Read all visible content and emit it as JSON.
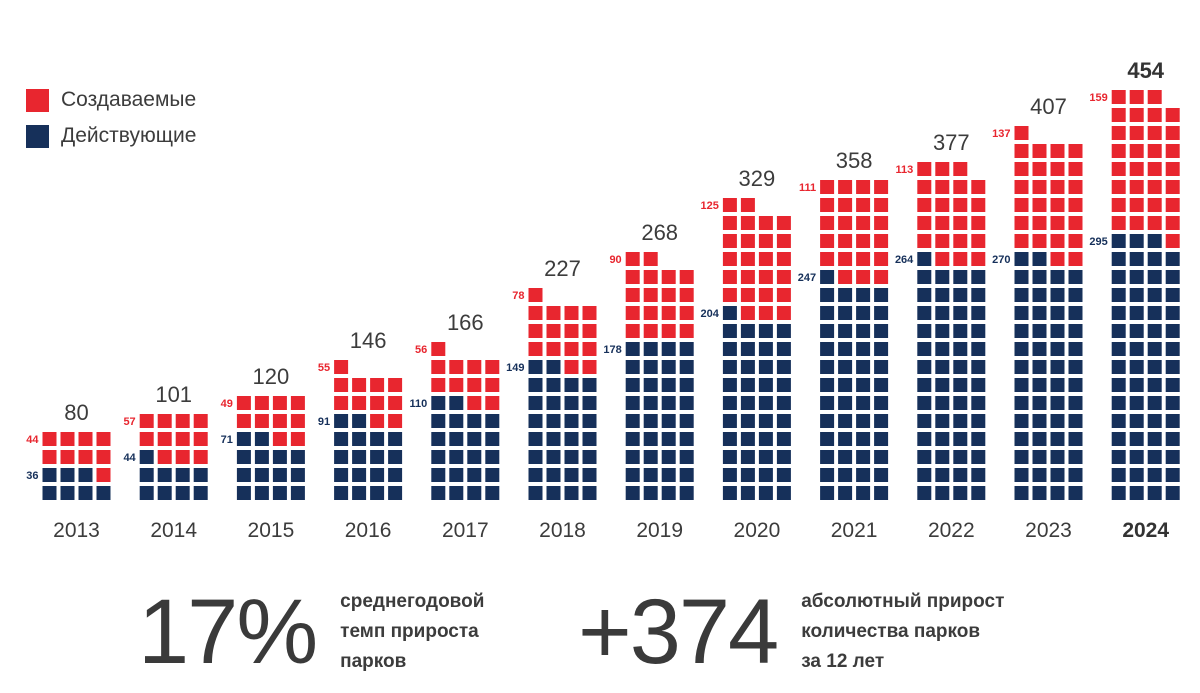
{
  "legend": {
    "planned_label": "Создаваемые",
    "active_label": "Действующие"
  },
  "colors": {
    "planned": "#e8262f",
    "active": "#16305a",
    "text": "#3c3c3c"
  },
  "chart_data": {
    "type": "bar",
    "title": "",
    "xlabel": "",
    "ylabel": "",
    "categories": [
      "2013",
      "2014",
      "2015",
      "2016",
      "2017",
      "2018",
      "2019",
      "2020",
      "2021",
      "2022",
      "2023",
      "2024"
    ],
    "series": [
      {
        "name": "Действующие",
        "values": [
          36,
          44,
          71,
          91,
          110,
          149,
          178,
          204,
          247,
          264,
          270,
          295
        ]
      },
      {
        "name": "Создаваемые",
        "values": [
          44,
          57,
          49,
          55,
          56,
          78,
          90,
          125,
          111,
          113,
          137,
          159
        ]
      }
    ],
    "totals": [
      80,
      101,
      120,
      146,
      166,
      227,
      268,
      329,
      358,
      377,
      407,
      454
    ],
    "highlight_category": "2024",
    "units_per_square": 5
  },
  "stats": [
    {
      "value": "17%",
      "lines": [
        "среднегодовой",
        "темп прироста",
        "парков"
      ]
    },
    {
      "value": "+374",
      "lines": [
        "абсолютный прирост",
        "количества парков",
        "за 12 лет"
      ]
    }
  ]
}
